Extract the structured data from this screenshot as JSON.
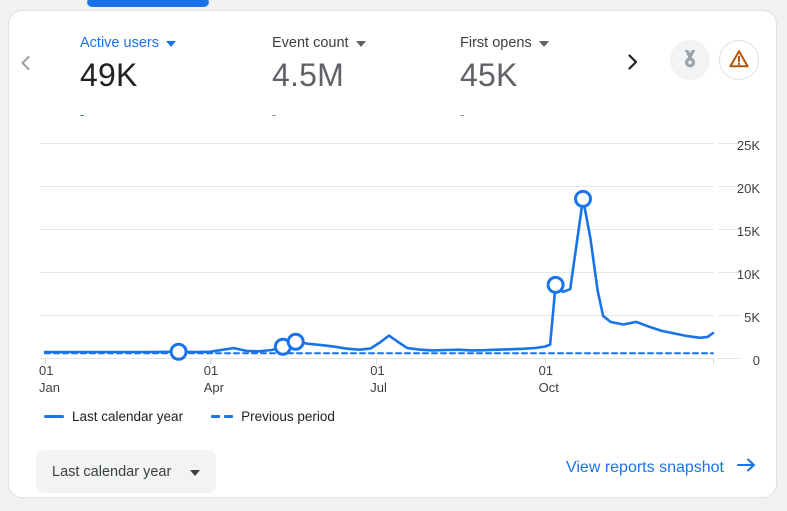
{
  "metrics": [
    {
      "label": "Active users",
      "value": "49K",
      "delta": "-"
    },
    {
      "label": "Event count",
      "value": "4.5M",
      "delta": "-"
    },
    {
      "label": "First opens",
      "value": "45K",
      "delta": "-"
    }
  ],
  "chart_data": {
    "type": "line",
    "title": "",
    "y_axis": {
      "labels": [
        "0",
        "5K",
        "10K",
        "15K",
        "20K",
        "25K"
      ],
      "values": [
        0,
        5000,
        10000,
        15000,
        20000,
        25000
      ],
      "range": [
        0,
        25000
      ]
    },
    "x_axis": {
      "labels": [
        {
          "day": 0,
          "line1": "01",
          "line2": "Jan"
        },
        {
          "day": 90,
          "line1": "01",
          "line2": "Apr"
        },
        {
          "day": 181,
          "line1": "01",
          "line2": "Jul"
        },
        {
          "day": 273,
          "line1": "01",
          "line2": "Oct"
        }
      ],
      "range_days": [
        0,
        365
      ],
      "grid": true
    },
    "series": [
      {
        "name": "Last calendar year",
        "style": "solid",
        "points": [
          [
            0,
            700
          ],
          [
            8,
            690
          ],
          [
            16,
            700
          ],
          [
            24,
            690
          ],
          [
            32,
            700
          ],
          [
            40,
            695
          ],
          [
            48,
            700
          ],
          [
            56,
            700
          ],
          [
            64,
            710
          ],
          [
            73,
            730
          ],
          [
            82,
            690
          ],
          [
            90,
            720
          ],
          [
            97,
            950
          ],
          [
            103,
            1150
          ],
          [
            110,
            830
          ],
          [
            117,
            780
          ],
          [
            124,
            930
          ],
          [
            130,
            1300
          ],
          [
            137,
            1900
          ],
          [
            144,
            1650
          ],
          [
            151,
            1500
          ],
          [
            158,
            1320
          ],
          [
            165,
            1080
          ],
          [
            172,
            960
          ],
          [
            178,
            1120
          ],
          [
            183,
            1800
          ],
          [
            188,
            2600
          ],
          [
            193,
            1850
          ],
          [
            198,
            1150
          ],
          [
            205,
            960
          ],
          [
            212,
            880
          ],
          [
            219,
            930
          ],
          [
            226,
            970
          ],
          [
            233,
            880
          ],
          [
            240,
            910
          ],
          [
            247,
            960
          ],
          [
            254,
            1010
          ],
          [
            261,
            1070
          ],
          [
            268,
            1160
          ],
          [
            273,
            1320
          ],
          [
            276,
            1550
          ],
          [
            279,
            8500
          ],
          [
            283,
            7700
          ],
          [
            287,
            8000
          ],
          [
            294,
            18500
          ],
          [
            298,
            14000
          ],
          [
            302,
            7800
          ],
          [
            305,
            4900
          ],
          [
            309,
            4200
          ],
          [
            316,
            3900
          ],
          [
            323,
            4200
          ],
          [
            330,
            3650
          ],
          [
            337,
            3150
          ],
          [
            344,
            2850
          ],
          [
            351,
            2550
          ],
          [
            358,
            2350
          ],
          [
            362,
            2450
          ],
          [
            365,
            2900
          ]
        ],
        "markers": [
          [
            73,
            730
          ],
          [
            130,
            1300
          ],
          [
            137,
            1900
          ],
          [
            279,
            8500
          ],
          [
            294,
            18500
          ]
        ]
      },
      {
        "name": "Previous period",
        "style": "dashed",
        "points": [
          [
            0,
            550
          ],
          [
            365,
            550
          ]
        ],
        "markers": []
      }
    ],
    "line_color": "#1a73e8",
    "legend_position": "bottom"
  },
  "legend": [
    {
      "label": "Last calendar year",
      "style": "solid"
    },
    {
      "label": "Previous period",
      "style": "dashed"
    }
  ],
  "footer": {
    "range_selector": "Last calendar year",
    "link": "View reports snapshot"
  },
  "colors": {
    "accent": "#1a73e8",
    "warning": "#b45309",
    "text_dark": "#202124",
    "text_gray": "#5f6368"
  }
}
